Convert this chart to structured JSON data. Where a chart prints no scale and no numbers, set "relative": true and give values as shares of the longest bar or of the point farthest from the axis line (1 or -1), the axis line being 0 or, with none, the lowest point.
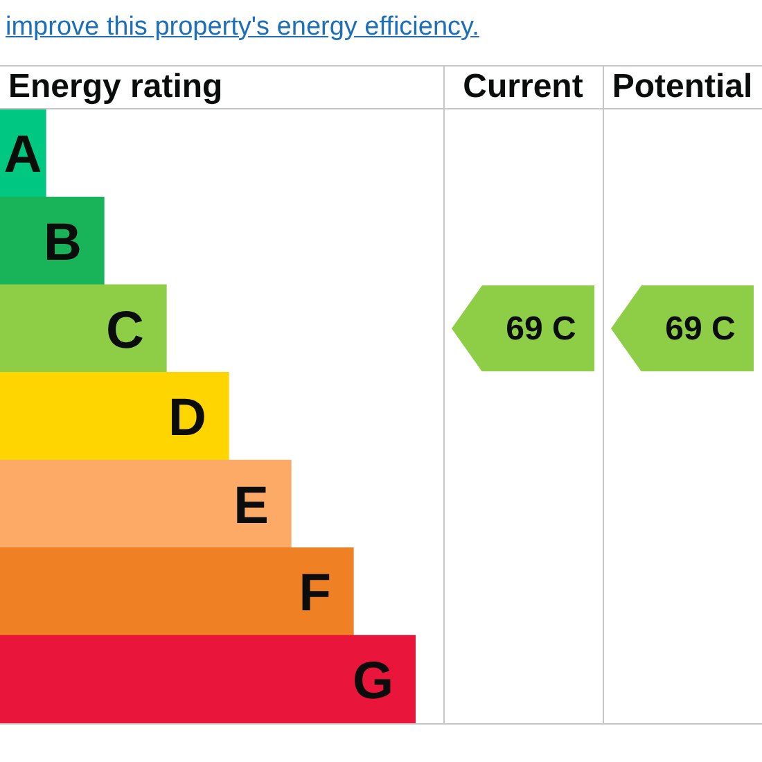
{
  "chart_data": {
    "type": "bar",
    "orientation": "horizontal",
    "relative": true,
    "title": "Energy rating",
    "subtitle": "improve this property's energy efficiency.",
    "categories": [
      "A",
      "B",
      "C",
      "D",
      "E",
      "F",
      "G"
    ],
    "values": [
      0.11,
      0.25,
      0.4,
      0.55,
      0.7,
      0.85,
      1
    ],
    "colors": [
      "#00c781",
      "#19b459",
      "#8dce46",
      "#ffd500",
      "#fcaa65",
      "#ef8023",
      "#e9153b"
    ],
    "annotations": [
      "Current",
      "69 C",
      "Potential",
      "69 C"
    ]
  }
}
